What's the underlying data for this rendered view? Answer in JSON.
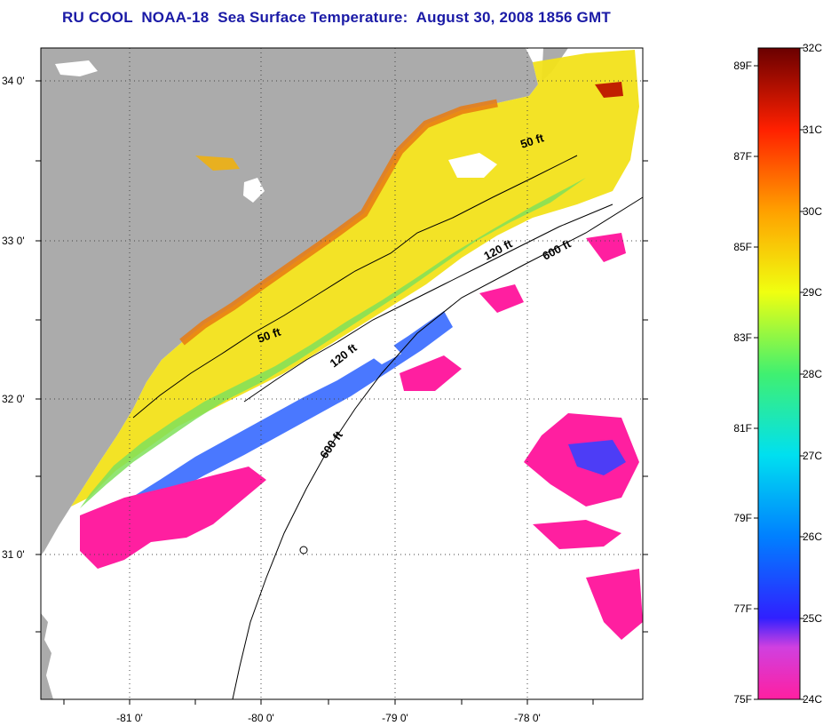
{
  "title": "RU COOL  NOAA-18  Sea Surface Temperature:  August 30, 2008 1856 GMT",
  "lat_labels": [
    "34 0'",
    "33 0'",
    "32 0'",
    "31 0'"
  ],
  "lon_labels": [
    "-81 0'",
    "-80 0'",
    "-79 0'",
    "-78 0'"
  ],
  "contours": {
    "fifty_a": "50 ft",
    "fifty_b": "50 ft",
    "one_twenty_a": "120 ft",
    "one_twenty_b": "120 ft",
    "six_hundred_a": "600 ft",
    "six_hundred_b": "600 ft"
  },
  "colorbar": {
    "celsius": [
      "32C",
      "31C",
      "30C",
      "29C",
      "28C",
      "27C",
      "26C",
      "25C",
      "24C"
    ],
    "fahrenheit": [
      "89F",
      "87F",
      "85F",
      "83F",
      "81F",
      "79F",
      "77F",
      "75F"
    ]
  },
  "colors": {
    "land": "#ababab",
    "title": "#1a1aa6"
  }
}
